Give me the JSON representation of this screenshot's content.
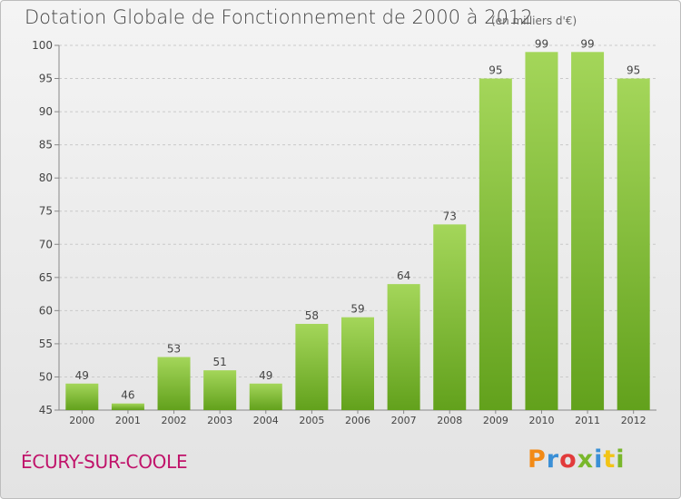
{
  "chart_data": {
    "type": "bar",
    "title": "Dotation Globale de Fonctionnement de 2000 à 2012",
    "unit_note": "(en milliers d'€)",
    "categories": [
      "2000",
      "2001",
      "2002",
      "2003",
      "2004",
      "2005",
      "2006",
      "2007",
      "2008",
      "2009",
      "2010",
      "2011",
      "2012"
    ],
    "values": [
      49,
      46,
      53,
      51,
      49,
      58,
      59,
      64,
      73,
      95,
      99,
      99,
      95
    ],
    "data_labels": [
      "49",
      "46",
      "53",
      "51",
      "49",
      "58",
      "59",
      "64",
      "73",
      "95",
      "99",
      "99",
      "95"
    ],
    "ylim": [
      45,
      100
    ],
    "yticks": [
      45,
      50,
      55,
      60,
      65,
      70,
      75,
      80,
      85,
      90,
      95,
      100
    ],
    "grid": "horizontal dashed",
    "bar_color_light": "#a4d65a",
    "bar_color_dark": "#62a11c"
  },
  "footer": {
    "commune": "ÉCURY-SUR-COOLE",
    "logo_text": "Proxiti",
    "logo_colors": [
      "#f28a16",
      "#3a8fd6",
      "#e23b3b",
      "#79b72b",
      "#3a8fd6",
      "#f2c416",
      "#79b72b"
    ]
  }
}
